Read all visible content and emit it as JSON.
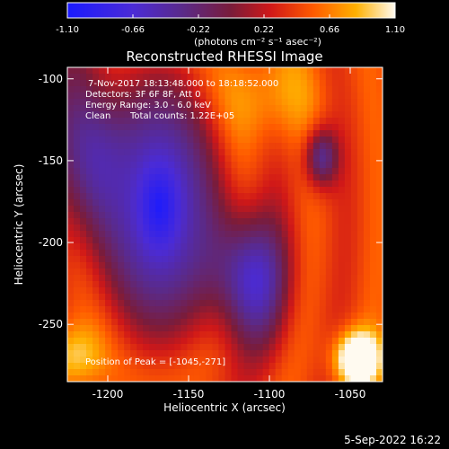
{
  "figure": {
    "title": "Reconstructed RHESSI Image",
    "date_stamp": "5-Sep-2022 16:22"
  },
  "colorbar": {
    "min": -1.1,
    "max": 1.1,
    "tick_labels": [
      "-1.10",
      "-0.66",
      "-0.22",
      "0.22",
      "0.66",
      "1.10"
    ],
    "tick_values": [
      -1.1,
      -0.66,
      -0.22,
      0.22,
      0.66,
      1.1
    ],
    "units_label": "(photons cm⁻² s⁻¹ asec⁻²)",
    "colormap": "rainbow-fire (blue-purple-red-orange-yellow-white)"
  },
  "annotations": {
    "time_range": "7-Nov-2017 18:13:48.000 to 18:18:52.000",
    "detectors": "Detectors: 3F 6F 8F, Att 0",
    "energy_range": "Energy Range: 3.0 - 6.0 keV",
    "method": "Clean",
    "total_counts": "Total counts: 1.22E+05",
    "peak_position": "Position of Peak = [-1045,-271]"
  },
  "chart_data": {
    "type": "heatmap",
    "title": "Reconstructed RHESSI Image",
    "xlabel": "Heliocentric X (arcsec)",
    "ylabel": "Heliocentric Y (arcsec)",
    "xlim": [
      -1225,
      -1030
    ],
    "ylim": [
      -285,
      -93
    ],
    "x_ticks": [
      -1200,
      -1150,
      -1100,
      -1050
    ],
    "x_tick_labels": [
      "-1200",
      "-1150",
      "-1100",
      "-1050"
    ],
    "y_ticks": [
      -250,
      -200,
      -150,
      -100
    ],
    "y_tick_labels": [
      "-250",
      "-200",
      "-150",
      "-100"
    ],
    "zlim": [
      -1.1,
      1.1
    ],
    "peak": {
      "x": -1045,
      "y": -271
    },
    "regions": [
      {
        "description": "negative lobe (blue)",
        "center_x": -1170,
        "center_y": -180,
        "value": -1.0
      },
      {
        "description": "secondary blue lobe",
        "center_x": -1115,
        "center_y": -215,
        "value": -0.8
      },
      {
        "description": "dark spot",
        "center_x": -1068,
        "center_y": -145,
        "value": -0.3
      },
      {
        "description": "bright source (peak)",
        "center_x": -1045,
        "center_y": -271,
        "value": 1.1
      }
    ]
  }
}
